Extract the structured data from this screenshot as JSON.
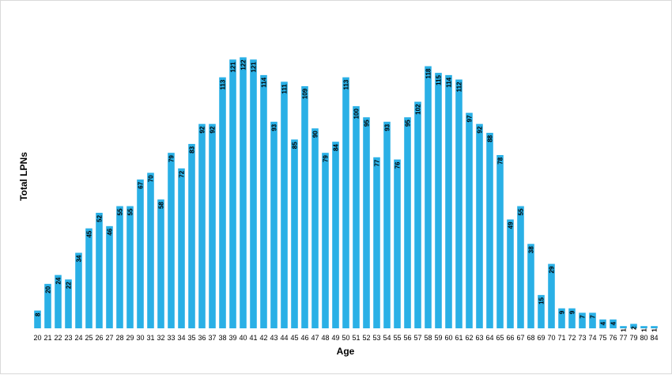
{
  "chart_data": {
    "type": "bar",
    "title": "",
    "xlabel": "Age",
    "ylabel": "Total LPNs",
    "ylim": [
      0,
      125
    ],
    "grid": false,
    "legend": "none",
    "color": "#2ab0e6",
    "categories": [
      "20",
      "21",
      "22",
      "23",
      "24",
      "25",
      "26",
      "27",
      "28",
      "29",
      "30",
      "31",
      "32",
      "33",
      "34",
      "35",
      "36",
      "37",
      "38",
      "39",
      "40",
      "41",
      "42",
      "43",
      "44",
      "45",
      "46",
      "47",
      "48",
      "49",
      "50",
      "51",
      "52",
      "53",
      "54",
      "55",
      "56",
      "57",
      "58",
      "59",
      "60",
      "61",
      "62",
      "63",
      "64",
      "65",
      "66",
      "67",
      "68",
      "69",
      "70",
      "71",
      "72",
      "73",
      "74",
      "75",
      "76",
      "77",
      "79",
      "80",
      "84"
    ],
    "values": [
      8,
      20,
      24,
      22,
      34,
      45,
      52,
      46,
      55,
      55,
      67,
      70,
      58,
      79,
      72,
      83,
      92,
      92,
      113,
      121,
      122,
      121,
      114,
      93,
      111,
      85,
      109,
      90,
      79,
      84,
      113,
      100,
      95,
      77,
      93,
      76,
      95,
      102,
      118,
      115,
      114,
      112,
      97,
      92,
      88,
      78,
      49,
      55,
      38,
      15,
      29,
      9,
      9,
      7,
      7,
      4,
      4,
      1,
      2,
      1,
      1
    ]
  }
}
